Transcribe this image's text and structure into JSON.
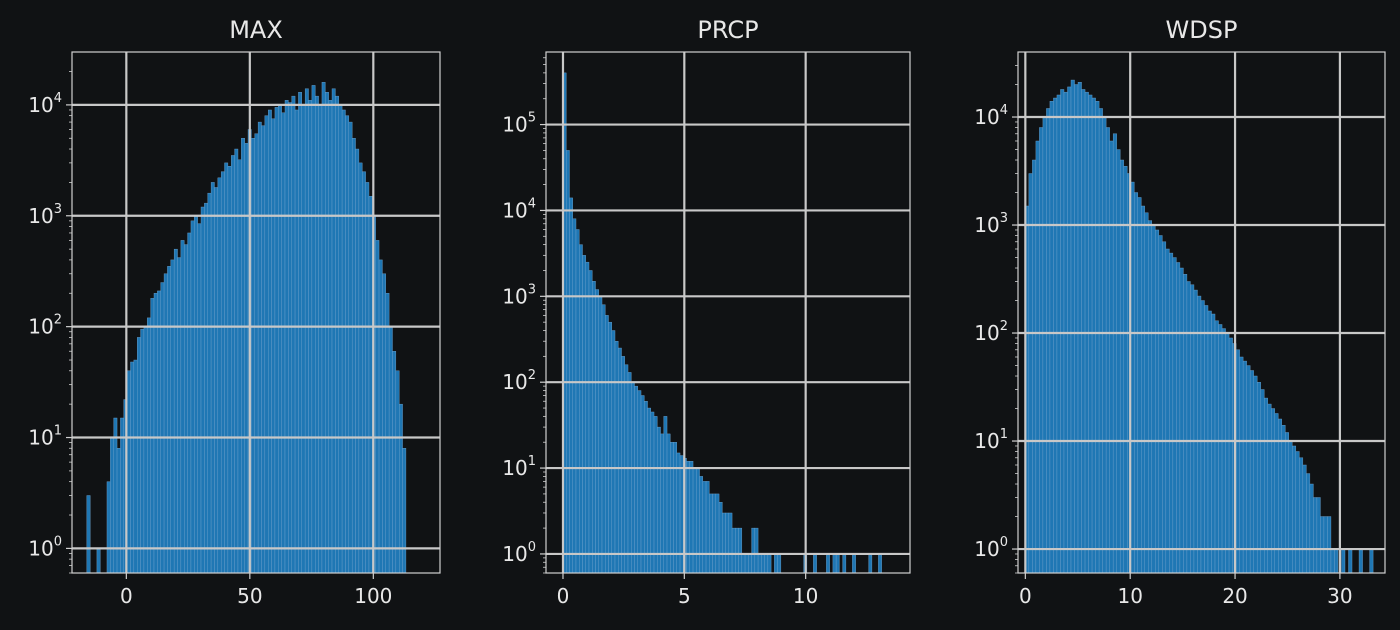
{
  "theme": {
    "background": "#101214",
    "bar_color": "#1f77b4",
    "bar_edge": "#6fa3cf",
    "grid_color": "#c8c8c8",
    "text_color": "#e8e8e8",
    "axis_color": "#d0d0d0"
  },
  "chart_data": [
    {
      "type": "bar",
      "title": "MAX",
      "yscale": "log",
      "grid": true,
      "xlim": [
        -22,
        127
      ],
      "ylim": [
        0.6,
        30000
      ],
      "xticks": [
        0,
        50,
        100
      ],
      "xtick_labels": [
        "0",
        "50",
        "100"
      ],
      "yticks": [
        1,
        10,
        100,
        1000,
        10000
      ],
      "ytick_labels": [
        {
          "base": "10",
          "exp": "0"
        },
        {
          "base": "10",
          "exp": "1"
        },
        {
          "base": "10",
          "exp": "2"
        },
        {
          "base": "10",
          "exp": "3"
        },
        {
          "base": "10",
          "exp": "4"
        }
      ],
      "bin_start": -16,
      "bin_width": 1.36,
      "counts": [
        3,
        0,
        0,
        1,
        0,
        0,
        4,
        10,
        15,
        8,
        15,
        22,
        40,
        48,
        50,
        80,
        95,
        100,
        120,
        180,
        200,
        210,
        250,
        300,
        350,
        400,
        500,
        420,
        600,
        550,
        700,
        900,
        1000,
        850,
        1200,
        1300,
        1600,
        2000,
        1800,
        2200,
        2500,
        3000,
        2800,
        3500,
        4000,
        3200,
        5000,
        4500,
        6000,
        5000,
        5500,
        7000,
        6500,
        8000,
        9000,
        7500,
        9500,
        10000,
        8500,
        11000,
        10500,
        12000,
        9000,
        13000,
        10000,
        14000,
        11000,
        15000,
        12000,
        10000,
        16000,
        13000,
        11000,
        14000,
        12000,
        10000,
        9000,
        8000,
        7000,
        5000,
        4000,
        3000,
        2500,
        2000,
        1500,
        1000,
        600,
        400,
        300,
        200,
        100,
        60,
        40,
        20,
        8
      ],
      "series": [
        {
          "values_key": "counts"
        }
      ]
    },
    {
      "type": "bar",
      "title": "PRCP",
      "yscale": "log",
      "grid": true,
      "xlim": [
        -0.7,
        14.3
      ],
      "ylim": [
        0.6,
        700000
      ],
      "xticks": [
        0,
        5,
        10
      ],
      "xtick_labels": [
        "0",
        "5",
        "10"
      ],
      "yticks": [
        1,
        10,
        100,
        1000,
        10000,
        100000
      ],
      "ytick_labels": [
        {
          "base": "10",
          "exp": "0"
        },
        {
          "base": "10",
          "exp": "1"
        },
        {
          "base": "10",
          "exp": "2"
        },
        {
          "base": "10",
          "exp": "3"
        },
        {
          "base": "10",
          "exp": "4"
        },
        {
          "base": "10",
          "exp": "5"
        }
      ],
      "bin_start": 0,
      "bin_width": 0.134,
      "counts": [
        400000,
        50000,
        14000,
        8000,
        6000,
        4000,
        3000,
        2500,
        2000,
        1500,
        1200,
        1000,
        800,
        600,
        500,
        400,
        300,
        250,
        200,
        160,
        130,
        100,
        90,
        80,
        70,
        60,
        50,
        45,
        40,
        30,
        25,
        40,
        25,
        20,
        20,
        15,
        14,
        13,
        12,
        12,
        10,
        10,
        8,
        7,
        7,
        5,
        5,
        5,
        4,
        3,
        3,
        3,
        2,
        2,
        2,
        1,
        1,
        1,
        2,
        2,
        1,
        1,
        1,
        1,
        0,
        1,
        1,
        0,
        0,
        0,
        0,
        0,
        0,
        0,
        1,
        0,
        0,
        1,
        0,
        0,
        0,
        1,
        0,
        1,
        1,
        0,
        1,
        0,
        0,
        1,
        0,
        0,
        0,
        0,
        1,
        0,
        0,
        1,
        0,
        0
      ],
      "series": [
        {
          "values_key": "counts"
        }
      ]
    },
    {
      "type": "bar",
      "title": "WDSP",
      "yscale": "log",
      "grid": true,
      "xlim": [
        -0.7,
        34.3
      ],
      "ylim": [
        0.6,
        40000
      ],
      "xticks": [
        0,
        10,
        20,
        30
      ],
      "xtick_labels": [
        "0",
        "10",
        "20",
        "30"
      ],
      "yticks": [
        1,
        10,
        100,
        1000,
        10000
      ],
      "ytick_labels": [
        {
          "base": "10",
          "exp": "0"
        },
        {
          "base": "10",
          "exp": "1"
        },
        {
          "base": "10",
          "exp": "2"
        },
        {
          "base": "10",
          "exp": "3"
        },
        {
          "base": "10",
          "exp": "4"
        }
      ],
      "bin_start": 0,
      "bin_width": 0.335,
      "counts": [
        1500,
        3000,
        4000,
        6000,
        8000,
        10000,
        12000,
        14000,
        15000,
        16000,
        18000,
        17000,
        19000,
        22000,
        20000,
        21000,
        18000,
        17000,
        16000,
        15000,
        14000,
        12000,
        10000,
        8000,
        6000,
        7000,
        5000,
        4000,
        3500,
        3000,
        2500,
        2000,
        1800,
        1500,
        1300,
        1100,
        1000,
        900,
        800,
        700,
        600,
        550,
        500,
        450,
        400,
        350,
        300,
        280,
        250,
        220,
        200,
        180,
        160,
        150,
        130,
        120,
        110,
        100,
        90,
        80,
        70,
        60,
        55,
        50,
        45,
        40,
        35,
        30,
        25,
        22,
        20,
        18,
        16,
        14,
        12,
        10,
        9,
        8,
        7,
        6,
        5,
        4,
        3,
        3,
        2,
        2,
        2,
        1,
        1,
        0,
        1,
        0,
        1,
        0,
        0,
        1,
        0,
        0,
        1,
        0
      ]
    }
  ]
}
